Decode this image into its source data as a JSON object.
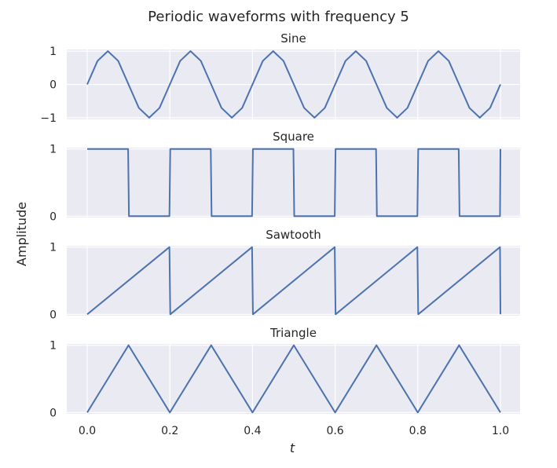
{
  "figure": {
    "title": "Periodic waveforms with frequency 5",
    "ylabel": "Amplitude",
    "xlabel": "t"
  },
  "colors": {
    "line": "#4c72b0",
    "axes_bg": "#eaeaf2",
    "grid": "#ffffff",
    "text": "#262626"
  },
  "chart_data": [
    {
      "type": "line",
      "title": "Sine",
      "frequency": 5,
      "x_range": [
        0,
        1
      ],
      "ylim": [
        -1.05,
        1.05
      ],
      "y_ticks": [
        -1,
        0,
        1
      ],
      "y_tick_labels": [
        "−1",
        "0",
        "1"
      ],
      "x_ticks": [
        0.0,
        0.2,
        0.4,
        0.6,
        0.8,
        1.0
      ],
      "x_tick_labels": [],
      "grid": true,
      "points": [
        [
          0,
          0
        ],
        [
          0.025,
          0.707
        ],
        [
          0.05,
          1
        ],
        [
          0.075,
          0.707
        ],
        [
          0.1,
          0
        ],
        [
          0.125,
          -0.707
        ],
        [
          0.15,
          -1
        ],
        [
          0.175,
          -0.707
        ],
        [
          0.2,
          0
        ],
        [
          0.225,
          0.707
        ],
        [
          0.25,
          1
        ],
        [
          0.275,
          0.707
        ],
        [
          0.3,
          0
        ],
        [
          0.325,
          -0.707
        ],
        [
          0.35,
          -1
        ],
        [
          0.375,
          -0.707
        ],
        [
          0.4,
          0
        ],
        [
          0.425,
          0.707
        ],
        [
          0.45,
          1
        ],
        [
          0.475,
          0.707
        ],
        [
          0.5,
          0
        ],
        [
          0.525,
          -0.707
        ],
        [
          0.55,
          -1
        ],
        [
          0.575,
          -0.707
        ],
        [
          0.6,
          0
        ],
        [
          0.625,
          0.707
        ],
        [
          0.65,
          1
        ],
        [
          0.675,
          0.707
        ],
        [
          0.7,
          0
        ],
        [
          0.725,
          -0.707
        ],
        [
          0.75,
          -1
        ],
        [
          0.775,
          -0.707
        ],
        [
          0.8,
          0
        ],
        [
          0.825,
          0.707
        ],
        [
          0.85,
          1
        ],
        [
          0.875,
          0.707
        ],
        [
          0.9,
          0
        ],
        [
          0.925,
          -0.707
        ],
        [
          0.95,
          -1
        ],
        [
          0.975,
          -0.707
        ],
        [
          1.0,
          0
        ]
      ]
    },
    {
      "type": "line",
      "title": "Square",
      "frequency": 5,
      "x_range": [
        0,
        1
      ],
      "ylim": [
        -0.02,
        1.02
      ],
      "y_ticks": [
        0,
        1
      ],
      "y_tick_labels": [
        "0",
        "1"
      ],
      "x_ticks": [
        0.0,
        0.2,
        0.4,
        0.6,
        0.8,
        1.0
      ],
      "x_tick_labels": [],
      "grid": true,
      "points": [
        [
          0,
          1
        ],
        [
          0.099,
          1
        ],
        [
          0.101,
          0
        ],
        [
          0.199,
          0
        ],
        [
          0.201,
          1
        ],
        [
          0.299,
          1
        ],
        [
          0.301,
          0
        ],
        [
          0.399,
          0
        ],
        [
          0.401,
          1
        ],
        [
          0.499,
          1
        ],
        [
          0.501,
          0
        ],
        [
          0.599,
          0
        ],
        [
          0.601,
          1
        ],
        [
          0.699,
          1
        ],
        [
          0.701,
          0
        ],
        [
          0.799,
          0
        ],
        [
          0.801,
          1
        ],
        [
          0.899,
          1
        ],
        [
          0.901,
          0
        ],
        [
          0.999,
          0
        ],
        [
          1.0,
          1
        ]
      ]
    },
    {
      "type": "line",
      "title": "Sawtooth",
      "frequency": 5,
      "x_range": [
        0,
        1
      ],
      "ylim": [
        -0.02,
        1.02
      ],
      "y_ticks": [
        0,
        1
      ],
      "y_tick_labels": [
        "0",
        "1"
      ],
      "x_ticks": [
        0.0,
        0.2,
        0.4,
        0.6,
        0.8,
        1.0
      ],
      "x_tick_labels": [],
      "grid": true,
      "points": [
        [
          0,
          0
        ],
        [
          0.199,
          1
        ],
        [
          0.201,
          0
        ],
        [
          0.399,
          1
        ],
        [
          0.401,
          0
        ],
        [
          0.599,
          1
        ],
        [
          0.601,
          0
        ],
        [
          0.799,
          1
        ],
        [
          0.801,
          0
        ],
        [
          0.999,
          1
        ],
        [
          1.0,
          0
        ]
      ]
    },
    {
      "type": "line",
      "title": "Triangle",
      "frequency": 5,
      "x_range": [
        0,
        1
      ],
      "ylim": [
        -0.02,
        1.02
      ],
      "y_ticks": [
        0,
        1
      ],
      "y_tick_labels": [
        "0",
        "1"
      ],
      "x_ticks": [
        0.0,
        0.2,
        0.4,
        0.6,
        0.8,
        1.0
      ],
      "x_tick_labels": [
        "0.0",
        "0.2",
        "0.4",
        "0.6",
        "0.8",
        "1.0"
      ],
      "grid": true,
      "points": [
        [
          0,
          0
        ],
        [
          0.1,
          1
        ],
        [
          0.2,
          0
        ],
        [
          0.3,
          1
        ],
        [
          0.4,
          0
        ],
        [
          0.5,
          1
        ],
        [
          0.6,
          0
        ],
        [
          0.7,
          1
        ],
        [
          0.8,
          0
        ],
        [
          0.9,
          1
        ],
        [
          1.0,
          0
        ]
      ]
    }
  ]
}
